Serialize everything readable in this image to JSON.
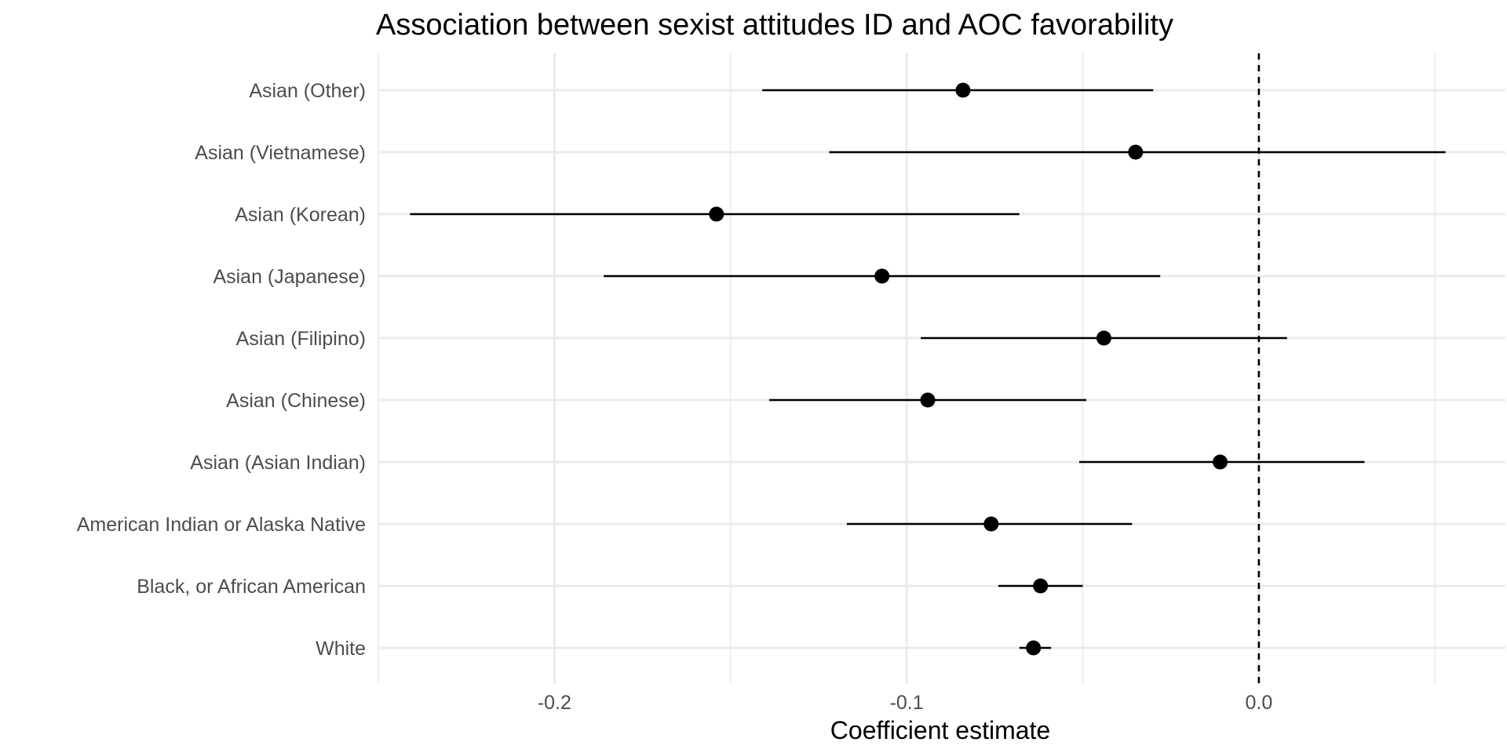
{
  "chart_data": {
    "type": "forest",
    "title": "Association between sexist attitudes ID and AOC favorability",
    "xlabel": "Coefficient estimate",
    "ylabel": "",
    "xlim": [
      -0.25,
      0.07
    ],
    "x_ticks": [
      "-0.2",
      "-0.1",
      "0.0"
    ],
    "x_tick_values": [
      -0.2,
      -0.1,
      0.0
    ],
    "reference_line": {
      "x": 0.0,
      "style": "dashed"
    },
    "grid": true,
    "categories": [
      "Asian (Other)",
      "Asian (Vietnamese)",
      "Asian (Korean)",
      "Asian (Japanese)",
      "Asian (Filipino)",
      "Asian (Chinese)",
      "Asian (Asian Indian)",
      "American Indian or Alaska Native",
      "Black, or African American",
      "White"
    ],
    "estimates": [
      -0.084,
      -0.035,
      -0.154,
      -0.107,
      -0.044,
      -0.094,
      -0.011,
      -0.076,
      -0.062,
      -0.064
    ],
    "ci_lower": [
      -0.141,
      -0.122,
      -0.241,
      -0.186,
      -0.096,
      -0.139,
      -0.051,
      -0.117,
      -0.074,
      -0.068
    ],
    "ci_upper": [
      -0.03,
      0.053,
      -0.068,
      -0.028,
      0.008,
      -0.049,
      0.03,
      -0.036,
      -0.05,
      -0.059
    ],
    "colors": {
      "point": "#000000",
      "line": "#000000",
      "grid": "#ebebeb",
      "text": "#4d4d4d"
    }
  }
}
